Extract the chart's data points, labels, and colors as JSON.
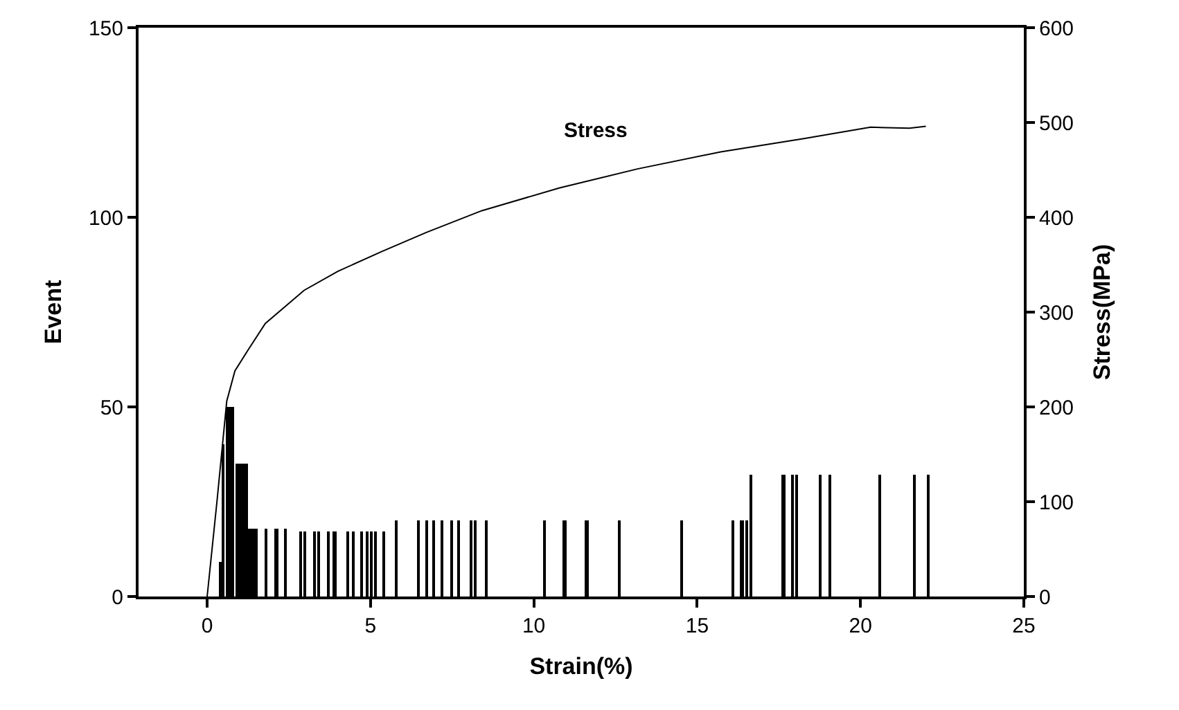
{
  "chart_data": {
    "type": "bar",
    "xlabel": "Strain(%)",
    "ylabel": "Event",
    "y2label": "Stress(MPa)",
    "xlim": [
      -2.1,
      25
    ],
    "xticks": [
      0,
      5,
      10,
      15,
      20,
      25
    ],
    "ylim": [
      0,
      150
    ],
    "yticks": [
      0,
      50,
      100,
      150
    ],
    "y2lim": [
      0,
      600
    ],
    "y2ticks": [
      0,
      100,
      200,
      300,
      400,
      500,
      600
    ],
    "series": [
      {
        "color": "#000000",
        "x": [
          0.4,
          0.5,
          0.6,
          0.7,
          0.8,
          0.9,
          1.0,
          1.1,
          1.2,
          1.3,
          1.4,
          1.5,
          1.81,
          2.12,
          2.38,
          2.86,
          3.0,
          3.3,
          3.43,
          3.71,
          3.9,
          4.32,
          4.46,
          4.74,
          4.89,
          5.03,
          5.17,
          5.41,
          5.77,
          6.45,
          6.73,
          6.94,
          7.2,
          7.48,
          7.68,
          8.07,
          8.19,
          8.54,
          10.31,
          10.94,
          11.62,
          12.61,
          14.53,
          16.08,
          16.37,
          16.53,
          16.65,
          17.64,
          17.92,
          18.06,
          18.77,
          19.08,
          20.58,
          21.65,
          22.07
        ],
        "values": [
          9,
          40,
          50,
          50,
          50,
          35,
          35,
          35,
          35,
          18,
          18,
          18,
          18,
          18,
          18,
          17,
          17,
          17,
          17,
          17,
          17,
          17,
          17,
          17,
          17,
          17,
          17,
          17,
          20,
          20,
          20,
          20,
          20,
          20,
          20,
          20,
          20,
          20,
          20,
          20,
          20,
          20,
          20,
          20,
          20,
          20,
          32,
          32,
          32,
          32,
          32,
          32,
          32,
          32,
          32
        ]
      },
      {
        "type": "line",
        "name": "Stress",
        "color": "#000000",
        "axis": "y2",
        "x": [
          0,
          0.3,
          0.6,
          0.85,
          1.27,
          1.78,
          2.97,
          4.0,
          5.35,
          6.71,
          8.41,
          10.79,
          13.17,
          15.72,
          18.27,
          20.31,
          21.5,
          22.0
        ],
        "values": [
          0,
          100,
          206,
          238,
          261,
          288,
          323,
          343,
          364,
          384,
          407,
          431,
          451,
          469,
          483,
          495,
          494,
          496
        ]
      }
    ]
  }
}
